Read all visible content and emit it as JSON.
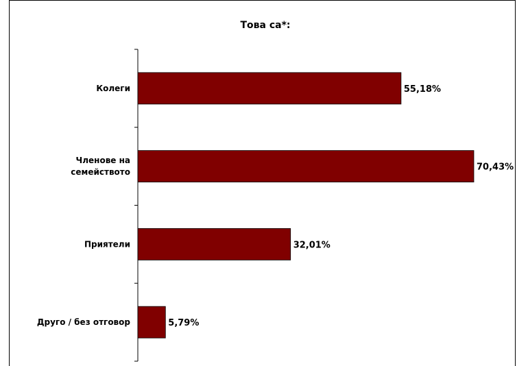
{
  "chart_data": {
    "type": "bar",
    "orientation": "horizontal",
    "title": "Това са*:",
    "categories": [
      [
        "Колеги"
      ],
      [
        "Членове на",
        "семейството"
      ],
      [
        "Приятели"
      ],
      [
        "Друго / без отговор"
      ]
    ],
    "values": [
      55.18,
      70.43,
      32.01,
      5.79
    ],
    "value_labels": [
      "55,18%",
      "70,43%",
      "32,01%",
      "5,79%"
    ],
    "xlim": [
      0,
      70.43
    ],
    "bar_color": "#800000",
    "grid": false,
    "legend": "none"
  }
}
